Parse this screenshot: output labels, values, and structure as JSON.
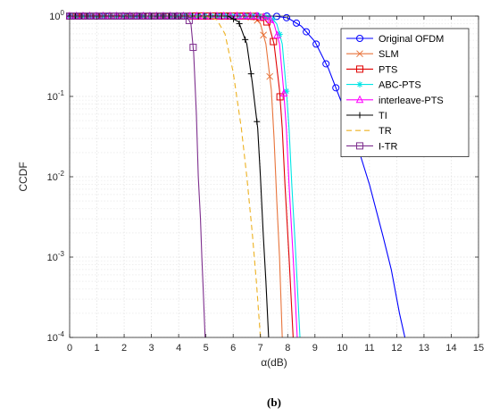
{
  "caption": "(b)",
  "chart_data": {
    "type": "line",
    "xlabel": "α(dB)",
    "ylabel": "CCDF",
    "xlim": [
      0,
      15
    ],
    "ylim": [
      0.0001,
      1
    ],
    "yscale": "log",
    "grid": true,
    "legend_position": "top-right",
    "x_ticks": [
      "0",
      "1",
      "2",
      "3",
      "4",
      "5",
      "6",
      "7",
      "8",
      "9",
      "10",
      "11",
      "12",
      "13",
      "14",
      "15"
    ],
    "y_ticks": [
      {
        "base": "10",
        "exp": "-4",
        "value": 0.0001
      },
      {
        "base": "10",
        "exp": "-3",
        "value": 0.001
      },
      {
        "base": "10",
        "exp": "-2",
        "value": 0.01
      },
      {
        "base": "10",
        "exp": "-1",
        "value": 0.1
      },
      {
        "base": "10",
        "exp": "0",
        "value": 1
      }
    ],
    "series": [
      {
        "name": "Original OFDM",
        "color": "#0000ff",
        "marker": "circle",
        "x": [
          0,
          7.5,
          8.0,
          8.5,
          9.0,
          9.5,
          10.0,
          10.5,
          11.0,
          11.5,
          11.8,
          12.1,
          12.3
        ],
        "y": [
          1,
          1,
          0.95,
          0.75,
          0.48,
          0.22,
          0.08,
          0.028,
          0.008,
          0.0018,
          0.0007,
          0.0002,
          0.0001
        ]
      },
      {
        "name": "SLM",
        "color": "#e8743b",
        "marker": "x",
        "x": [
          0,
          6.4,
          6.8,
          7.0,
          7.2,
          7.4,
          7.5,
          7.6,
          7.7,
          7.8
        ],
        "y": [
          1,
          1,
          0.95,
          0.8,
          0.45,
          0.12,
          0.03,
          0.005,
          0.001,
          0.0001
        ]
      },
      {
        "name": "PTS",
        "color": "#e00000",
        "marker": "square",
        "x": [
          0,
          6.7,
          7.1,
          7.3,
          7.5,
          7.7,
          7.8,
          7.9,
          8.05,
          8.2
        ],
        "y": [
          1,
          1,
          0.95,
          0.8,
          0.45,
          0.12,
          0.04,
          0.008,
          0.001,
          0.0001
        ]
      },
      {
        "name": "ABC-PTS",
        "color": "#00e5e5",
        "marker": "asterisk",
        "x": [
          0,
          7.0,
          7.4,
          7.6,
          7.8,
          7.95,
          8.05,
          8.15,
          8.3,
          8.45
        ],
        "y": [
          1,
          1,
          0.95,
          0.8,
          0.45,
          0.12,
          0.04,
          0.008,
          0.001,
          0.0001
        ]
      },
      {
        "name": "interleave-PTS",
        "color": "#ff00ff",
        "marker": "triangle",
        "x": [
          0,
          6.9,
          7.3,
          7.5,
          7.7,
          7.85,
          7.95,
          8.05,
          8.2,
          8.35
        ],
        "y": [
          1,
          1,
          0.95,
          0.8,
          0.45,
          0.12,
          0.04,
          0.008,
          0.001,
          0.0001
        ]
      },
      {
        "name": "TI",
        "color": "#000000",
        "marker": "plus",
        "x": [
          0,
          5.8,
          6.2,
          6.5,
          6.7,
          6.9,
          7.0,
          7.1,
          7.2,
          7.3
        ],
        "y": [
          1,
          1,
          0.85,
          0.45,
          0.15,
          0.04,
          0.01,
          0.002,
          0.0005,
          0.0001
        ]
      },
      {
        "name": "TR",
        "color": "#edb120",
        "marker": "none",
        "dash": true,
        "x": [
          0,
          5.0,
          5.4,
          5.7,
          6.0,
          6.3,
          6.5,
          6.7,
          6.85,
          7.0
        ],
        "y": [
          1,
          1,
          0.9,
          0.6,
          0.2,
          0.04,
          0.01,
          0.002,
          0.0005,
          0.0001
        ]
      },
      {
        "name": "I-TR",
        "color": "#7e2f8e",
        "marker": "square",
        "x": [
          0,
          4.3,
          4.45,
          4.55,
          4.65,
          4.72,
          4.8,
          4.85,
          4.9,
          4.97
        ],
        "y": [
          1,
          1,
          0.8,
          0.35,
          0.06,
          0.01,
          0.003,
          0.001,
          0.0004,
          0.0001
        ]
      }
    ]
  }
}
